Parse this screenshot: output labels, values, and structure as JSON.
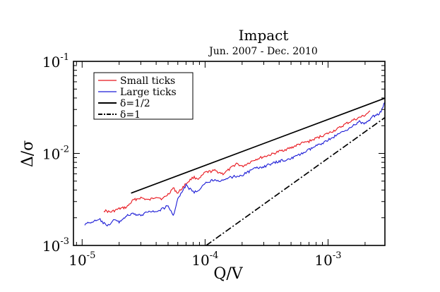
{
  "chart_data": {
    "type": "line",
    "title": "Impact",
    "subtitle": "Jun. 2007 - Dec. 2010",
    "xlabel": "Q/V",
    "ylabel": "Δ/σ",
    "x_scale": "log",
    "y_scale": "log",
    "xlim": [
      8.5e-06,
      0.0029
    ],
    "ylim": [
      0.001,
      0.1
    ],
    "grid": false,
    "legend_position": "top-left",
    "x_ticks": [
      {
        "value": 1e-05,
        "base": "10",
        "exp": "-5"
      },
      {
        "value": 0.0001,
        "base": "10",
        "exp": "-4"
      },
      {
        "value": 0.001,
        "base": "10",
        "exp": "-3"
      }
    ],
    "y_ticks": [
      {
        "value": 0.001,
        "base": "10",
        "exp": "-3"
      },
      {
        "value": 0.01,
        "base": "10",
        "exp": "-2"
      },
      {
        "value": 0.1,
        "base": "10",
        "exp": "-1"
      }
    ],
    "series": [
      {
        "name": "Small ticks",
        "color": "#e8141c",
        "style": "solid",
        "x": [
          1.5e-05,
          1.7e-05,
          2e-05,
          2.3e-05,
          2.6e-05,
          3e-05,
          3.5e-05,
          4e-05,
          4.5e-05,
          5e-05,
          5.5e-05,
          6e-05,
          7e-05,
          8e-05,
          9e-05,
          0.0001,
          0.00012,
          0.00014,
          0.00016,
          0.00018,
          0.0002,
          0.00025,
          0.0003,
          0.00035,
          0.0004,
          0.0005,
          0.0006,
          0.0007,
          0.0008,
          0.001,
          0.0012,
          0.0014,
          0.0016,
          0.0018,
          0.002,
          0.0022
        ],
        "y": [
          0.0024,
          0.0023,
          0.0025,
          0.0026,
          0.0031,
          0.0033,
          0.0031,
          0.0034,
          0.0032,
          0.0036,
          0.0042,
          0.0037,
          0.0047,
          0.0055,
          0.0053,
          0.0062,
          0.0065,
          0.006,
          0.0068,
          0.0078,
          0.0072,
          0.0085,
          0.0092,
          0.0098,
          0.0105,
          0.0115,
          0.0128,
          0.0135,
          0.0146,
          0.0165,
          0.0185,
          0.021,
          0.023,
          0.0245,
          0.026,
          0.029
        ]
      },
      {
        "name": "Large ticks",
        "color": "#1c1cd6",
        "style": "solid",
        "x": [
          1.05e-05,
          1.2e-05,
          1.4e-05,
          1.6e-05,
          1.8e-05,
          2e-05,
          2.3e-05,
          2.6e-05,
          3e-05,
          3.5e-05,
          4e-05,
          4.5e-05,
          5e-05,
          5.5e-05,
          6e-05,
          7e-05,
          8e-05,
          9e-05,
          0.0001,
          0.00012,
          0.00014,
          0.00016,
          0.0002,
          0.00025,
          0.0003,
          0.0004,
          0.0005,
          0.0006,
          0.0008,
          0.001,
          0.0012,
          0.0015,
          0.0018,
          0.002,
          0.0023,
          0.0027,
          0.0029
        ],
        "y": [
          0.0017,
          0.0018,
          0.0019,
          0.0016,
          0.0019,
          0.0018,
          0.0021,
          0.0022,
          0.0021,
          0.0024,
          0.0023,
          0.0025,
          0.0027,
          0.0021,
          0.0032,
          0.0045,
          0.0038,
          0.0039,
          0.0048,
          0.0052,
          0.005,
          0.0055,
          0.0058,
          0.0068,
          0.0072,
          0.0082,
          0.0088,
          0.0098,
          0.012,
          0.014,
          0.016,
          0.019,
          0.022,
          0.021,
          0.025,
          0.028,
          0.036
        ]
      },
      {
        "name": "δ=1/2",
        "color": "#000000",
        "style": "solid",
        "x": [
          2.5e-05,
          0.0029
        ],
        "y": [
          0.0037,
          0.0398
        ]
      },
      {
        "name": "δ=1",
        "color": "#000000",
        "style": "dashdot",
        "x": [
          0.000102,
          0.0029
        ],
        "y": [
          0.001,
          0.0245
        ]
      }
    ]
  }
}
